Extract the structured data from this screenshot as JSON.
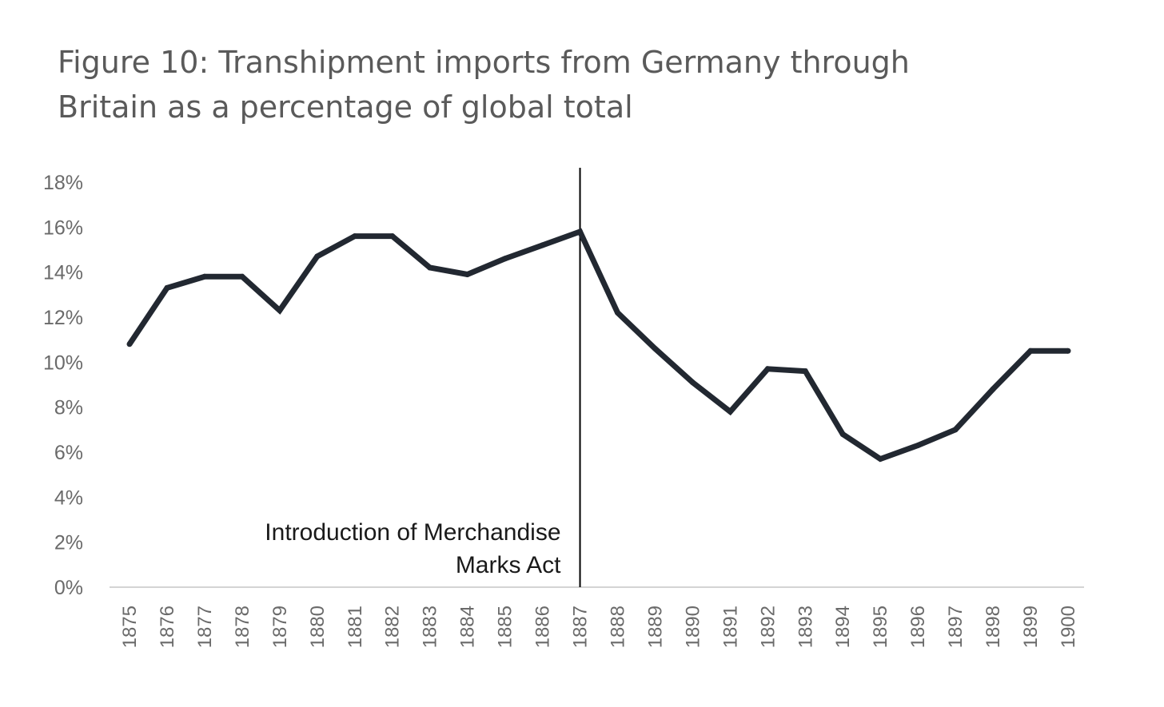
{
  "chart_data": {
    "type": "line",
    "title": "Figure 10: Transhipment imports from Germany through Britain as a percentage of global total",
    "xlabel": "",
    "ylabel": "",
    "ylim": [
      0,
      18
    ],
    "yticks": [
      "0%",
      "2%",
      "4%",
      "6%",
      "8%",
      "10%",
      "12%",
      "14%",
      "16%",
      "18%"
    ],
    "categories": [
      "1875",
      "1876",
      "1877",
      "1878",
      "1879",
      "1880",
      "1881",
      "1882",
      "1883",
      "1884",
      "1885",
      "1886",
      "1887",
      "1888",
      "1889",
      "1890",
      "1891",
      "1892",
      "1893",
      "1894",
      "1895",
      "1896",
      "1897",
      "1898",
      "1899",
      "1900"
    ],
    "series": [
      {
        "name": "Transhipment imports from Germany through Britain (% of global total)",
        "color": "#222831",
        "values": [
          10.8,
          13.3,
          13.8,
          13.8,
          12.3,
          14.7,
          15.6,
          15.6,
          14.2,
          13.9,
          14.6,
          15.2,
          15.8,
          12.2,
          10.6,
          9.1,
          7.8,
          9.7,
          9.6,
          6.8,
          5.7,
          6.3,
          7.0,
          8.8,
          10.5,
          10.5
        ]
      }
    ],
    "annotation": {
      "line1": "Introduction of Merchandise",
      "line2": "Marks Act",
      "at_category": "1887"
    },
    "grid": false,
    "legend": "none"
  }
}
